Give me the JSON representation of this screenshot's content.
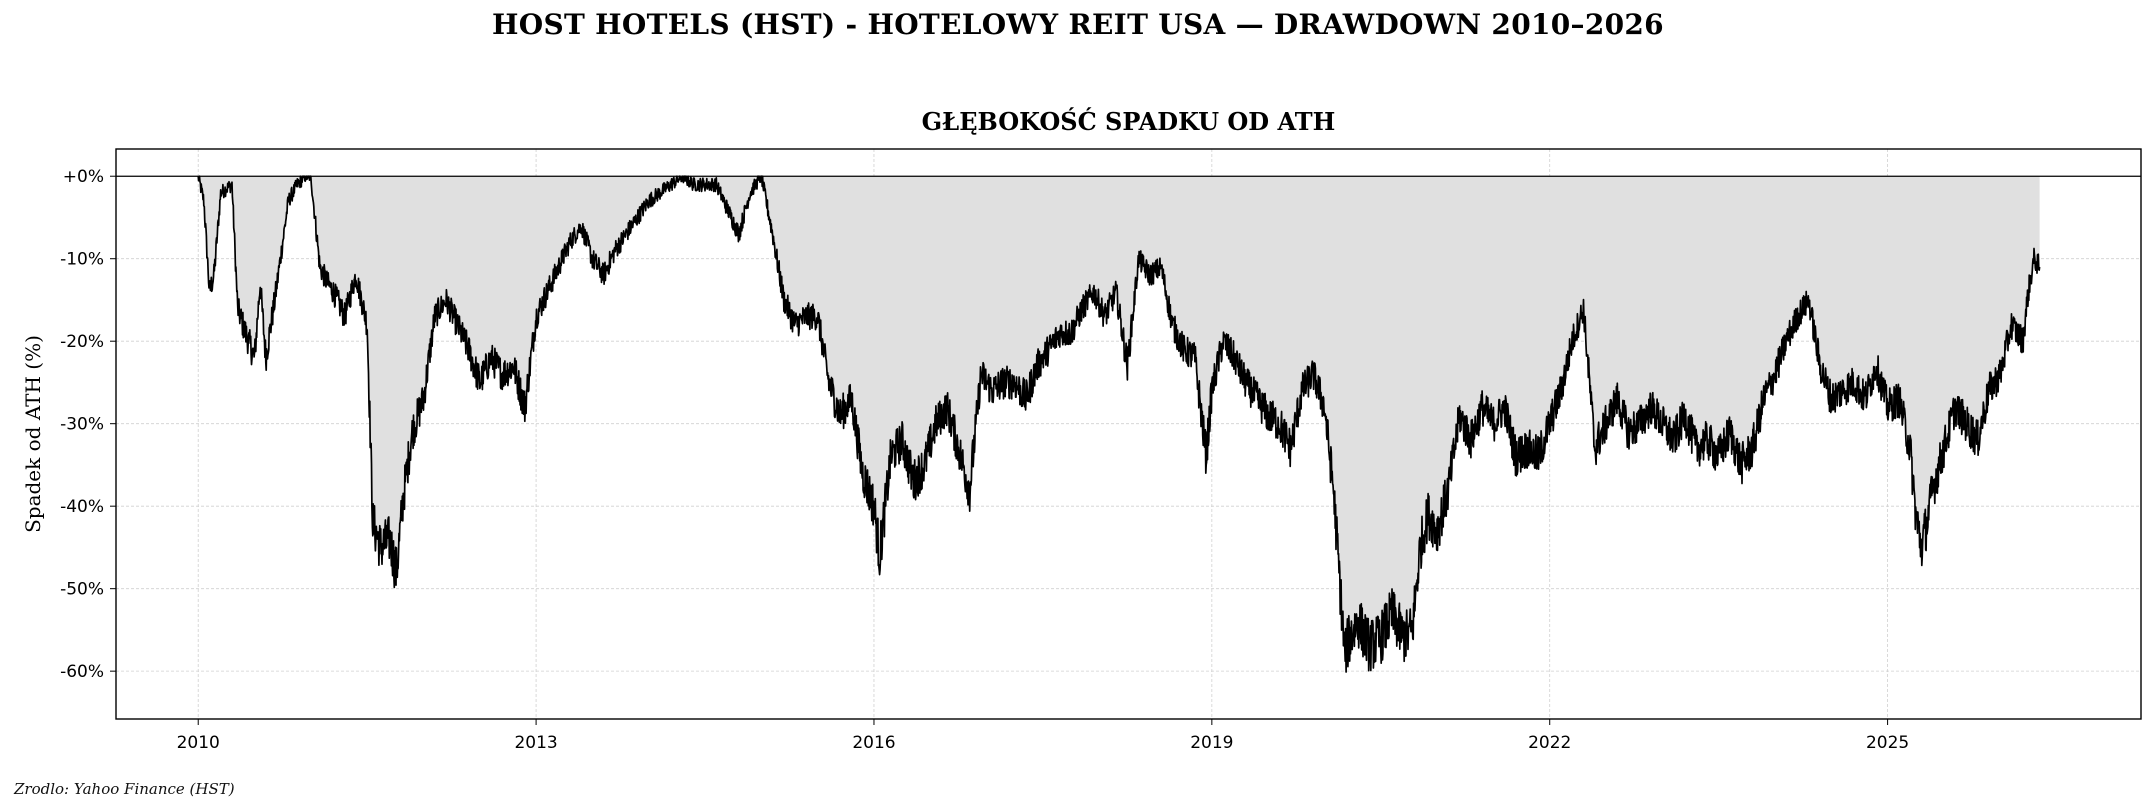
{
  "figure": {
    "suptitle": "HOST HOTELS (HST) - HOTELOWY REIT USA — DRAWDOWN 2010–2026",
    "source_note": "Zrodlo: Yahoo Finance (HST)"
  },
  "chart_data": {
    "type": "area",
    "title": "GŁĘBOKOŚĆ SPADKU OD ATH",
    "xlabel": "",
    "ylabel": "Spadek od ATH (%)",
    "xlim": [
      2009.27,
      2027.25
    ],
    "ylim": [
      -65.8,
      3.3
    ],
    "x_ticks": [
      2010,
      2013,
      2016,
      2019,
      2022,
      2025
    ],
    "x_tick_labels": [
      "2010",
      "2013",
      "2016",
      "2019",
      "2022",
      "2025"
    ],
    "y_ticks": [
      0,
      -10,
      -20,
      -30,
      -40,
      -50,
      -60
    ],
    "y_tick_labels": [
      "+0%",
      "-10%",
      "-20%",
      "-30%",
      "-40%",
      "-50%",
      "-60%"
    ],
    "grid": true,
    "reference_line": 0,
    "colors": {
      "line": "#000000",
      "fill": "#e0e0e0",
      "grid": "#d0d0d0"
    },
    "series": [
      {
        "x": [
          2010.0,
          2010.05,
          2010.1,
          2010.14,
          2010.2,
          2010.3,
          2010.35,
          2010.42,
          2010.5,
          2010.55,
          2010.6,
          2010.68,
          2010.75,
          2010.8,
          2010.88,
          2010.95,
          2011.0,
          2011.08,
          2011.15,
          2011.2,
          2011.3,
          2011.4,
          2011.5,
          2011.55,
          2011.62,
          2011.7,
          2011.76,
          2011.82,
          2011.9,
          2012.0,
          2012.1,
          2012.2,
          2012.3,
          2012.4,
          2012.5,
          2012.6,
          2012.7,
          2012.8,
          2012.9,
          2013.0,
          2013.1,
          2013.2,
          2013.3,
          2013.4,
          2013.5,
          2013.6,
          2013.7,
          2013.8,
          2013.9,
          2014.0,
          2014.1,
          2014.2,
          2014.3,
          2014.4,
          2014.5,
          2014.6,
          2014.7,
          2014.8,
          2014.9,
          2015.0,
          2015.1,
          2015.2,
          2015.3,
          2015.4,
          2015.5,
          2015.6,
          2015.7,
          2015.8,
          2015.9,
          2016.0,
          2016.05,
          2016.15,
          2016.25,
          2016.35,
          2016.45,
          2016.55,
          2016.65,
          2016.75,
          2016.85,
          2016.95,
          2017.05,
          2017.15,
          2017.25,
          2017.35,
          2017.45,
          2017.55,
          2017.65,
          2017.75,
          2017.85,
          2017.95,
          2018.05,
          2018.15,
          2018.25,
          2018.35,
          2018.45,
          2018.55,
          2018.65,
          2018.75,
          2018.85,
          2018.95,
          2019.0,
          2019.1,
          2019.2,
          2019.3,
          2019.4,
          2019.5,
          2019.6,
          2019.7,
          2019.8,
          2019.9,
          2020.0,
          2020.08,
          2020.14,
          2020.18,
          2020.22,
          2020.3,
          2020.4,
          2020.5,
          2020.6,
          2020.7,
          2020.78,
          2020.85,
          2020.92,
          2021.0,
          2021.1,
          2021.2,
          2021.3,
          2021.4,
          2021.5,
          2021.6,
          2021.7,
          2021.8,
          2021.9,
          2022.0,
          2022.1,
          2022.2,
          2022.3,
          2022.4,
          2022.5,
          2022.6,
          2022.7,
          2022.8,
          2022.9,
          2023.0,
          2023.1,
          2023.2,
          2023.3,
          2023.4,
          2023.5,
          2023.6,
          2023.7,
          2023.8,
          2023.9,
          2024.0,
          2024.1,
          2024.2,
          2024.3,
          2024.4,
          2024.5,
          2024.6,
          2024.7,
          2024.8,
          2024.9,
          2025.0,
          2025.1,
          2025.2,
          2025.25,
          2025.3,
          2025.35,
          2025.4,
          2025.5,
          2025.6,
          2025.7,
          2025.8,
          2025.9,
          2026.0,
          2026.1,
          2026.2,
          2026.25,
          2026.3,
          2026.35
        ],
        "y": [
          0,
          -3,
          -14,
          -12,
          -2,
          -1,
          -16,
          -19,
          -22,
          -13,
          -22,
          -15,
          -8,
          -3,
          -1,
          0,
          0,
          -11,
          -13,
          -14,
          -17,
          -12,
          -18,
          -42,
          -45,
          -44,
          -48,
          -39,
          -31,
          -27,
          -17,
          -15,
          -18,
          -21,
          -25,
          -22,
          -24,
          -23,
          -28,
          -17,
          -14,
          -11,
          -8,
          -6,
          -10,
          -12,
          -9,
          -7,
          -5,
          -3,
          -2,
          -1,
          0,
          -1,
          -1,
          -1,
          -4,
          -7,
          -2,
          0,
          -7,
          -15,
          -18,
          -17,
          -17,
          -25,
          -29,
          -27,
          -36,
          -40,
          -46,
          -34,
          -32,
          -37,
          -35,
          -30,
          -28,
          -33,
          -38,
          -24,
          -26,
          -25,
          -25,
          -27,
          -23,
          -21,
          -19,
          -19,
          -16,
          -14,
          -17,
          -14,
          -23,
          -10,
          -12,
          -11,
          -18,
          -21,
          -22,
          -34,
          -26,
          -20,
          -22,
          -25,
          -27,
          -29,
          -30,
          -33,
          -26,
          -24,
          -28,
          -38,
          -50,
          -58,
          -56,
          -54,
          -57,
          -56,
          -53,
          -56,
          -55,
          -45,
          -41,
          -43,
          -38,
          -29,
          -32,
          -28,
          -30,
          -28,
          -34,
          -33,
          -34,
          -30,
          -26,
          -20,
          -16,
          -33,
          -30,
          -27,
          -31,
          -30,
          -28,
          -30,
          -32,
          -29,
          -33,
          -32,
          -34,
          -31,
          -35,
          -33,
          -27,
          -24,
          -20,
          -17,
          -15,
          -23,
          -27,
          -26,
          -25,
          -27,
          -23,
          -28,
          -27,
          -33,
          -41,
          -45,
          -42,
          -38,
          -33,
          -28,
          -30,
          -32,
          -26,
          -24,
          -18,
          -20,
          -14,
          -10,
          -11
        ]
      }
    ]
  }
}
